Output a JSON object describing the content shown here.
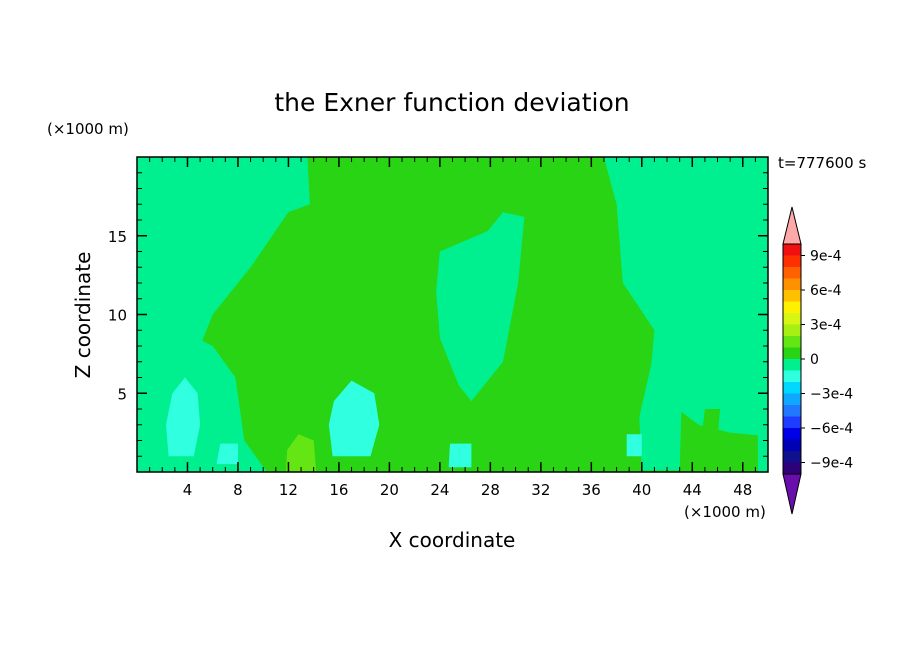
{
  "chart_data": {
    "type": "heatmap",
    "title": "the Exner function deviation",
    "xlabel": "X coordinate",
    "ylabel": "Z coordinate",
    "x_unit": "(×1000 m)",
    "y_unit": "(×1000 m)",
    "time_label": "t=777600 s",
    "xlim": [
      0,
      50
    ],
    "ylim": [
      0,
      20
    ],
    "xticks": [
      4,
      8,
      12,
      16,
      20,
      24,
      28,
      32,
      36,
      40,
      44,
      48
    ],
    "yticks": [
      5,
      10,
      15
    ],
    "colorbar": {
      "levels": [
        -0.0011,
        -0.001,
        -0.0009,
        -0.0008,
        -0.0007,
        -0.0006,
        -0.0005,
        -0.0004,
        -0.0003,
        -0.0002,
        -0.0001,
        0,
        0.0001,
        0.0002,
        0.0003,
        0.0004,
        0.0005,
        0.0006,
        0.0007,
        0.0008,
        0.0009,
        0.001,
        0.0011
      ],
      "colors": [
        "#6a0dad",
        "#2e007a",
        "#10108c",
        "#0000b4",
        "#0000e6",
        "#1e3cff",
        "#2078ff",
        "#10a8ff",
        "#00d8ff",
        "#30ffe0",
        "#00f090",
        "#28d414",
        "#64e614",
        "#a6f014",
        "#d8f614",
        "#ffef00",
        "#ffc000",
        "#ff9000",
        "#ff6000",
        "#ff3000",
        "#f01010",
        "#ffa8a8"
      ],
      "labels": [
        "9e-4",
        "6e-4",
        "3e-4",
        "0",
        "−3e-4",
        "−6e-4",
        "−9e-4"
      ],
      "label_values": [
        0.0009,
        0.0006,
        0.0003,
        0,
        -0.0003,
        -0.0006,
        -0.0009
      ]
    },
    "background_color": "#00f090",
    "regions": [
      {
        "name": "main-zero-band",
        "value": 3e-05,
        "points": [
          [
            10.3,
            0
          ],
          [
            40,
            0
          ],
          [
            41,
            9
          ],
          [
            38.5,
            12
          ],
          [
            38,
            17
          ],
          [
            37,
            20
          ],
          [
            13.5,
            20
          ],
          [
            13.7,
            17
          ],
          [
            12,
            16.5
          ],
          [
            9,
            13
          ],
          [
            6,
            10
          ],
          [
            4.5,
            7
          ],
          [
            3,
            6
          ],
          [
            0,
            5
          ],
          [
            0,
            0
          ]
        ]
      },
      {
        "name": "mid-neg-pocket",
        "value": -4e-05,
        "points": [
          [
            24,
            14
          ],
          [
            27.8,
            15.3
          ],
          [
            29,
            16.5
          ],
          [
            30.7,
            16.2
          ],
          [
            30.2,
            12
          ],
          [
            29,
            7
          ],
          [
            26.5,
            4.5
          ],
          [
            25.5,
            5.5
          ],
          [
            24,
            8.5
          ],
          [
            23.7,
            11.5
          ]
        ]
      },
      {
        "name": "right-upper-neg",
        "value": -4e-05,
        "points": [
          [
            37.6,
            20
          ],
          [
            50,
            20
          ],
          [
            50,
            6
          ],
          [
            47,
            8
          ],
          [
            43.5,
            11
          ],
          [
            41,
            12
          ],
          [
            40.5,
            17
          ],
          [
            38.7,
            19
          ]
        ]
      },
      {
        "name": "left-mid-neg",
        "value": -4e-05,
        "points": [
          [
            0,
            0
          ],
          [
            10.3,
            0
          ],
          [
            8.5,
            2
          ],
          [
            7.8,
            6
          ],
          [
            6,
            8
          ],
          [
            3.5,
            9
          ],
          [
            1,
            8.5
          ],
          [
            0,
            7
          ]
        ]
      },
      {
        "name": "lower-right-pos",
        "value": 6e-05,
        "points": [
          [
            39,
            0
          ],
          [
            49.5,
            0
          ],
          [
            49.5,
            2.3
          ],
          [
            47,
            2.5
          ],
          [
            44.5,
            3
          ],
          [
            42,
            4.5
          ],
          [
            40,
            4
          ],
          [
            39.3,
            2
          ]
        ]
      },
      {
        "name": "right-pocket-neg",
        "value": -5e-05,
        "points": [
          [
            40,
            0.1
          ],
          [
            43,
            0.1
          ],
          [
            43.2,
            6
          ],
          [
            42,
            7.5
          ],
          [
            40.8,
            7
          ],
          [
            39.8,
            3.5
          ]
        ]
      },
      {
        "name": "cyan-core-left",
        "value": -0.00018,
        "points": [
          [
            2.5,
            1
          ],
          [
            4.5,
            1
          ],
          [
            5,
            3
          ],
          [
            4.8,
            5
          ],
          [
            3.8,
            6
          ],
          [
            2.8,
            5
          ],
          [
            2.3,
            3
          ]
        ]
      },
      {
        "name": "cyan-core-mid",
        "value": -0.00018,
        "points": [
          [
            15.5,
            1
          ],
          [
            18.5,
            1
          ],
          [
            19.2,
            3
          ],
          [
            18.8,
            5
          ],
          [
            17,
            5.8
          ],
          [
            15.6,
            4.5
          ],
          [
            15.2,
            3
          ]
        ]
      },
      {
        "name": "cyan-core-small-1",
        "value": -0.00018,
        "points": [
          [
            6.3,
            0.5
          ],
          [
            8,
            0.5
          ],
          [
            8,
            1.8
          ],
          [
            6.6,
            1.8
          ]
        ]
      },
      {
        "name": "cyan-core-small-2",
        "value": -0.00018,
        "points": [
          [
            24.7,
            0.3
          ],
          [
            26.5,
            0.3
          ],
          [
            26.5,
            1.8
          ],
          [
            24.8,
            1.8
          ]
        ]
      },
      {
        "name": "cyan-core-small-3",
        "value": -0.00018,
        "points": [
          [
            38.8,
            1
          ],
          [
            40,
            1
          ],
          [
            40,
            2.4
          ],
          [
            38.8,
            2.4
          ]
        ]
      },
      {
        "name": "yellowgreen-left",
        "value": 8e-05,
        "points": [
          [
            10.5,
            0
          ],
          [
            15,
            0
          ],
          [
            14.8,
            3
          ],
          [
            14.8,
            6
          ],
          [
            14,
            8.5
          ],
          [
            12.5,
            8.8
          ],
          [
            11.6,
            7
          ],
          [
            11.2,
            4
          ],
          [
            10.7,
            2
          ]
        ]
      },
      {
        "name": "yellowgreen-center",
        "value": 8e-05,
        "points": [
          [
            19.5,
            2
          ],
          [
            21.4,
            2
          ],
          [
            21.6,
            4
          ],
          [
            20.5,
            6
          ],
          [
            19.4,
            5
          ]
        ]
      },
      {
        "name": "yellowgreen-lower-mid",
        "value": 8e-05,
        "points": [
          [
            21.8,
            0.2
          ],
          [
            22.8,
            0.2
          ],
          [
            23,
            3.5
          ],
          [
            22.3,
            3.5
          ]
        ]
      },
      {
        "name": "yellowgreen-right",
        "value": 8e-05,
        "points": [
          [
            36,
            0
          ],
          [
            38.3,
            0
          ],
          [
            38.1,
            1.2
          ],
          [
            36.2,
            1.2
          ]
        ]
      },
      {
        "name": "yellowgreen-far-right",
        "value": 8e-05,
        "points": [
          [
            44.7,
            2
          ],
          [
            46,
            2
          ],
          [
            46.2,
            4
          ],
          [
            45,
            4
          ]
        ]
      },
      {
        "name": "yellowgreen-core",
        "value": 0.00018,
        "points": [
          [
            11.8,
            0
          ],
          [
            14.2,
            0
          ],
          [
            14,
            2
          ],
          [
            12.8,
            2.4
          ],
          [
            11.9,
            1.4
          ]
        ]
      },
      {
        "name": "right-cyan-strip",
        "value": -4e-05,
        "points": [
          [
            49.2,
            0
          ],
          [
            50,
            0
          ],
          [
            50,
            6
          ],
          [
            49.2,
            6
          ]
        ]
      }
    ]
  }
}
